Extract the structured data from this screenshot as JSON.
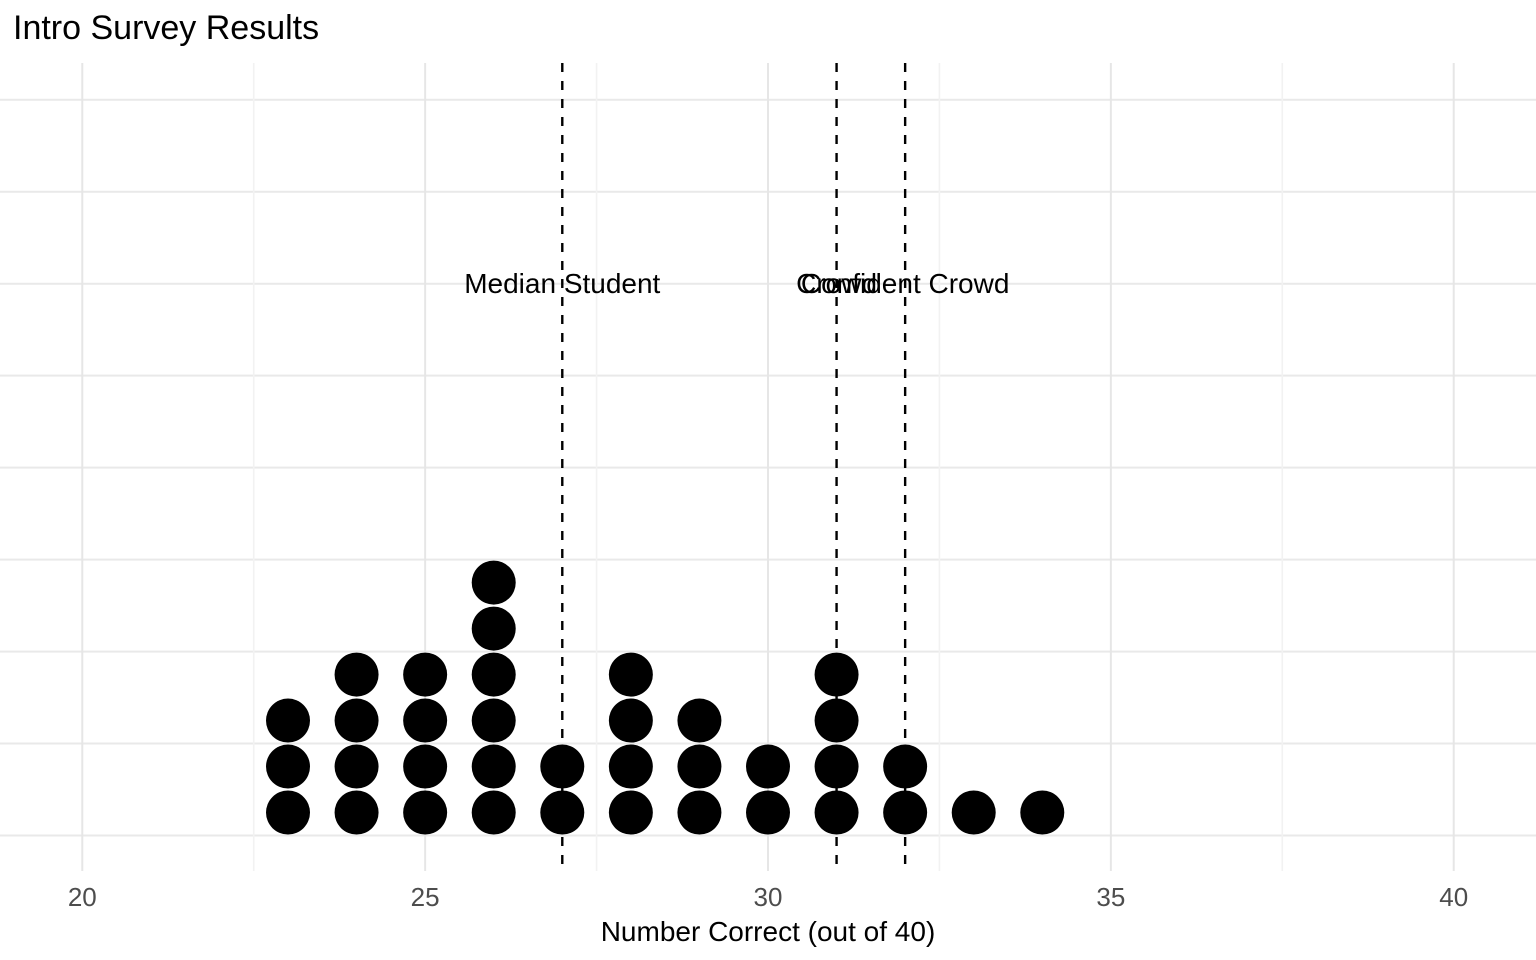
{
  "title": "Intro Survey Results",
  "chart_data": {
    "type": "bar",
    "render_style": "dotplot-stacked-dots-histogram",
    "title": "Intro Survey Results",
    "xlabel": "Number Correct (out of 40)",
    "ylabel": "",
    "categories": [
      23,
      24,
      25,
      26,
      27,
      28,
      29,
      30,
      31,
      32,
      33,
      34
    ],
    "values": [
      3,
      4,
      4,
      6,
      2,
      4,
      3,
      2,
      4,
      2,
      1,
      1
    ],
    "x_ticks": [
      20,
      25,
      30,
      35,
      40
    ],
    "x_minor_ticks": [
      22.5,
      27.5,
      32.5,
      37.5
    ],
    "xlim": [
      18.8,
      41.2
    ],
    "ylim": [
      0,
      16.8
    ],
    "y_gridlines": [
      0,
      2,
      4,
      6,
      8,
      10,
      12,
      14,
      16
    ],
    "grid": "on",
    "legend": "none",
    "vlines": [
      {
        "x": 27,
        "label": "Median Student"
      },
      {
        "x": 31,
        "label": "Crowd"
      },
      {
        "x": 32,
        "label": "Confident Crowd"
      }
    ],
    "colors": {
      "dot": "#000000",
      "vline": "#000000",
      "grid_major": "#e6e6e6",
      "grid_minor": "#f2f2f2",
      "tick_label": "#4d4d4d",
      "text": "#000000",
      "background": "#ffffff"
    }
  }
}
